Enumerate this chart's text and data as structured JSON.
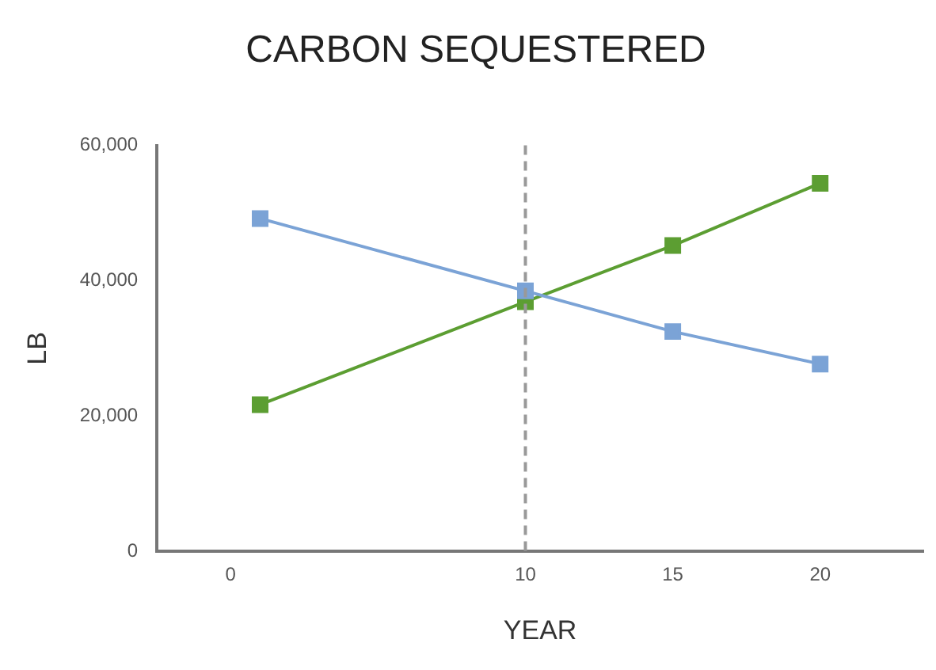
{
  "chart_data": {
    "type": "line",
    "title": "CARBON SEQUESTERED",
    "xlabel": "YEAR",
    "ylabel": "LB",
    "x": [
      1,
      10,
      15,
      20
    ],
    "series": [
      {
        "color": "#7ba3d6",
        "values": [
          49200,
          38500,
          32500,
          27700
        ]
      },
      {
        "color": "#5c9e32",
        "values": [
          21700,
          36900,
          45200,
          54400
        ]
      }
    ],
    "xlim": [
      -2.5,
      23.5
    ],
    "xticks": [
      0,
      10,
      15,
      20
    ],
    "ylim": [
      0,
      60000
    ],
    "yticks": [
      0,
      {
        "value": 20000,
        "label": "20,000"
      },
      {
        "value": 40000,
        "label": "40,000"
      },
      {
        "value": 60000,
        "label": "60,000"
      }
    ],
    "ref_lines": [
      {
        "axis": "x",
        "value": 10,
        "color": "#999999",
        "line_style": "dashed"
      }
    ],
    "grid": false,
    "legend": false,
    "marker": "square",
    "line_style": "solid"
  }
}
